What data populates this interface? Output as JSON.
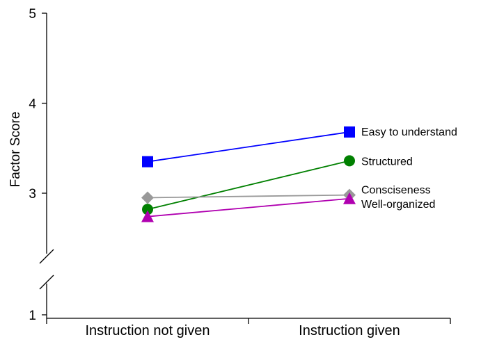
{
  "chart_data": {
    "type": "line",
    "title": "",
    "xlabel": "",
    "ylabel": "Factor Score",
    "categories": [
      "Instruction not given",
      "Instruction given"
    ],
    "y_ticks": [
      "1",
      "3",
      "4",
      "5"
    ],
    "axis_break": "between 1 and 3",
    "ylim": [
      1,
      5
    ],
    "grid": false,
    "legend": "inline labels at right end of each series",
    "series": [
      {
        "name": "Easy to understand",
        "values": [
          3.35,
          3.68
        ],
        "color": "#0000ff",
        "marker": "square"
      },
      {
        "name": "Structured",
        "values": [
          2.82,
          3.36
        ],
        "color": "#008000",
        "marker": "circle"
      },
      {
        "name": "Consciseness",
        "values": [
          2.95,
          2.98
        ],
        "color": "#999999",
        "marker": "diamond"
      },
      {
        "name": "Well-organized",
        "values": [
          2.74,
          2.94
        ],
        "color": "#b000b0",
        "marker": "triangle"
      }
    ]
  }
}
